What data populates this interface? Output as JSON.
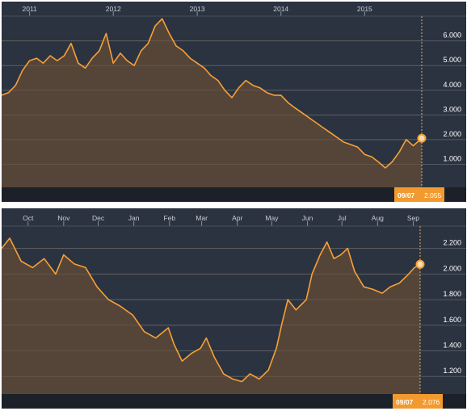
{
  "colors": {
    "background": "#2b3340",
    "line": "#f7a035",
    "area": "#5a4738",
    "grid": "#525a66",
    "badge": "#f29a2e",
    "footer": "#1c2129"
  },
  "chart_data": [
    {
      "type": "area",
      "x_ticks": [
        "2011",
        "2012",
        "2013",
        "2014",
        "2015"
      ],
      "y_ticks": [
        "1.000",
        "2.000",
        "3.000",
        "4.000",
        "5.000",
        "6.000"
      ],
      "ylim": [
        0,
        7.2
      ],
      "x_start": "2010-09-01",
      "x_end": "2015-09-07",
      "points": [
        [
          "2010-09-01",
          3.8
        ],
        [
          "2010-10-01",
          3.9
        ],
        [
          "2010-11-01",
          4.2
        ],
        [
          "2010-12-01",
          4.8
        ],
        [
          "2011-01-01",
          5.2
        ],
        [
          "2011-02-01",
          5.3
        ],
        [
          "2011-03-01",
          5.1
        ],
        [
          "2011-04-01",
          5.4
        ],
        [
          "2011-05-01",
          5.2
        ],
        [
          "2011-06-01",
          5.4
        ],
        [
          "2011-07-01",
          5.9
        ],
        [
          "2011-08-01",
          5.1
        ],
        [
          "2011-09-01",
          4.9
        ],
        [
          "2011-10-01",
          5.3
        ],
        [
          "2011-11-01",
          5.6
        ],
        [
          "2011-12-01",
          6.3
        ],
        [
          "2012-01-01",
          5.1
        ],
        [
          "2012-02-01",
          5.5
        ],
        [
          "2012-03-01",
          5.2
        ],
        [
          "2012-04-01",
          5.0
        ],
        [
          "2012-05-01",
          5.6
        ],
        [
          "2012-06-01",
          5.9
        ],
        [
          "2012-07-01",
          6.6
        ],
        [
          "2012-08-01",
          6.9
        ],
        [
          "2012-09-01",
          6.3
        ],
        [
          "2012-10-01",
          5.8
        ],
        [
          "2012-11-01",
          5.6
        ],
        [
          "2012-12-01",
          5.3
        ],
        [
          "2013-01-01",
          5.1
        ],
        [
          "2013-02-01",
          4.9
        ],
        [
          "2013-03-01",
          4.6
        ],
        [
          "2013-04-01",
          4.4
        ],
        [
          "2013-05-01",
          4.0
        ],
        [
          "2013-06-01",
          3.7
        ],
        [
          "2013-07-01",
          4.1
        ],
        [
          "2013-08-01",
          4.4
        ],
        [
          "2013-09-01",
          4.2
        ],
        [
          "2013-10-01",
          4.1
        ],
        [
          "2013-11-01",
          3.9
        ],
        [
          "2013-12-01",
          3.8
        ],
        [
          "2014-01-01",
          3.8
        ],
        [
          "2014-02-01",
          3.5
        ],
        [
          "2014-03-01",
          3.3
        ],
        [
          "2014-04-01",
          3.1
        ],
        [
          "2014-05-01",
          2.9
        ],
        [
          "2014-06-01",
          2.7
        ],
        [
          "2014-07-01",
          2.5
        ],
        [
          "2014-08-01",
          2.3
        ],
        [
          "2014-09-01",
          2.1
        ],
        [
          "2014-10-01",
          1.9
        ],
        [
          "2014-11-01",
          1.8
        ],
        [
          "2014-12-01",
          1.7
        ],
        [
          "2015-01-01",
          1.4
        ],
        [
          "2015-02-01",
          1.3
        ],
        [
          "2015-03-01",
          1.1
        ],
        [
          "2015-04-01",
          0.85
        ],
        [
          "2015-05-01",
          1.1
        ],
        [
          "2015-06-01",
          1.5
        ],
        [
          "2015-07-01",
          2.0
        ],
        [
          "2015-08-01",
          1.75
        ],
        [
          "2015-09-07",
          2.055
        ]
      ],
      "last_date": "09/07",
      "last_value": "2.055"
    },
    {
      "type": "area",
      "x_ticks": [
        "Oct",
        "Nov",
        "Dec",
        "Jan",
        "Feb",
        "Mar",
        "Apr",
        "May",
        "Jun",
        "Jul",
        "Aug",
        "Sep"
      ],
      "x_tick_dates": [
        "2014-10-01",
        "2014-11-01",
        "2014-12-01",
        "2015-01-01",
        "2015-02-01",
        "2015-03-01",
        "2015-04-01",
        "2015-05-01",
        "2015-06-01",
        "2015-07-01",
        "2015-08-01",
        "2015-09-01"
      ],
      "y_ticks": [
        "1.200",
        "1.400",
        "1.600",
        "1.800",
        "2.000",
        "2.200"
      ],
      "ylim": [
        1.05,
        2.45
      ],
      "x_start": "2014-09-08",
      "x_end": "2015-09-07",
      "points": [
        [
          "2014-09-08",
          2.2
        ],
        [
          "2014-09-15",
          2.28
        ],
        [
          "2014-09-25",
          2.1
        ],
        [
          "2014-10-05",
          2.05
        ],
        [
          "2014-10-15",
          2.12
        ],
        [
          "2014-10-25",
          2.0
        ],
        [
          "2014-11-01",
          2.15
        ],
        [
          "2014-11-10",
          2.08
        ],
        [
          "2014-11-20",
          2.05
        ],
        [
          "2014-11-30",
          1.9
        ],
        [
          "2014-12-10",
          1.8
        ],
        [
          "2014-12-20",
          1.75
        ],
        [
          "2014-12-31",
          1.68
        ],
        [
          "2015-01-10",
          1.55
        ],
        [
          "2015-01-20",
          1.5
        ],
        [
          "2015-01-31",
          1.58
        ],
        [
          "2015-02-05",
          1.45
        ],
        [
          "2015-02-12",
          1.32
        ],
        [
          "2015-02-20",
          1.38
        ],
        [
          "2015-02-28",
          1.42
        ],
        [
          "2015-03-05",
          1.5
        ],
        [
          "2015-03-12",
          1.35
        ],
        [
          "2015-03-20",
          1.22
        ],
        [
          "2015-03-28",
          1.18
        ],
        [
          "2015-04-05",
          1.16
        ],
        [
          "2015-04-12",
          1.22
        ],
        [
          "2015-04-20",
          1.18
        ],
        [
          "2015-04-28",
          1.25
        ],
        [
          "2015-05-05",
          1.42
        ],
        [
          "2015-05-10",
          1.62
        ],
        [
          "2015-05-15",
          1.8
        ],
        [
          "2015-05-22",
          1.72
        ],
        [
          "2015-05-31",
          1.8
        ],
        [
          "2015-06-05",
          2.0
        ],
        [
          "2015-06-12",
          2.15
        ],
        [
          "2015-06-18",
          2.25
        ],
        [
          "2015-06-24",
          2.12
        ],
        [
          "2015-06-30",
          2.15
        ],
        [
          "2015-07-06",
          2.2
        ],
        [
          "2015-07-12",
          2.02
        ],
        [
          "2015-07-20",
          1.9
        ],
        [
          "2015-07-28",
          1.88
        ],
        [
          "2015-08-05",
          1.85
        ],
        [
          "2015-08-12",
          1.9
        ],
        [
          "2015-08-20",
          1.93
        ],
        [
          "2015-08-28",
          2.0
        ],
        [
          "2015-09-02",
          2.05
        ],
        [
          "2015-09-07",
          2.076
        ]
      ],
      "last_date": "09/07",
      "last_value": "2.076"
    }
  ]
}
